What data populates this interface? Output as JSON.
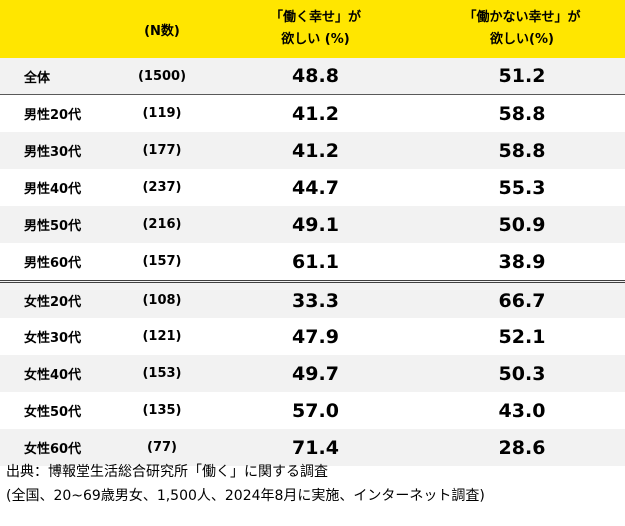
{
  "header": {
    "n_label": "(N数)",
    "col_work_line1": "「働く幸せ」が",
    "col_work_line2": "欲しい (%)",
    "col_nowork_line1": "「働かない幸せ」が",
    "col_nowork_line2": "欲しい(%)"
  },
  "rows": [
    {
      "label": "全体",
      "n": "(1500)",
      "work": "48.8",
      "nowork": "51.2"
    },
    {
      "label": "男性20代",
      "n": "(119)",
      "work": "41.2",
      "nowork": "58.8"
    },
    {
      "label": "男性30代",
      "n": "(177)",
      "work": "41.2",
      "nowork": "58.8"
    },
    {
      "label": "男性40代",
      "n": "(237)",
      "work": "44.7",
      "nowork": "55.3"
    },
    {
      "label": "男性50代",
      "n": "(216)",
      "work": "49.1",
      "nowork": "50.9"
    },
    {
      "label": "男性60代",
      "n": "(157)",
      "work": "61.1",
      "nowork": "38.9"
    },
    {
      "label": "女性20代",
      "n": "(108)",
      "work": "33.3",
      "nowork": "66.7"
    },
    {
      "label": "女性30代",
      "n": "(121)",
      "work": "47.9",
      "nowork": "52.1"
    },
    {
      "label": "女性40代",
      "n": "(153)",
      "work": "49.7",
      "nowork": "50.3"
    },
    {
      "label": "女性50代",
      "n": "(135)",
      "work": "57.0",
      "nowork": "43.0"
    },
    {
      "label": "女性60代",
      "n": "(77)",
      "work": "71.4",
      "nowork": "28.6"
    }
  ],
  "footer": {
    "source": "出典：博報堂生活総合研究所「働く」に関する調査",
    "note": "(全国、20~69歳男女、1,500人、2024年8月に実施、インターネット調査)"
  },
  "colors": {
    "header_bg": "#ffe600",
    "alt_row_bg": "#f2f2f2"
  }
}
